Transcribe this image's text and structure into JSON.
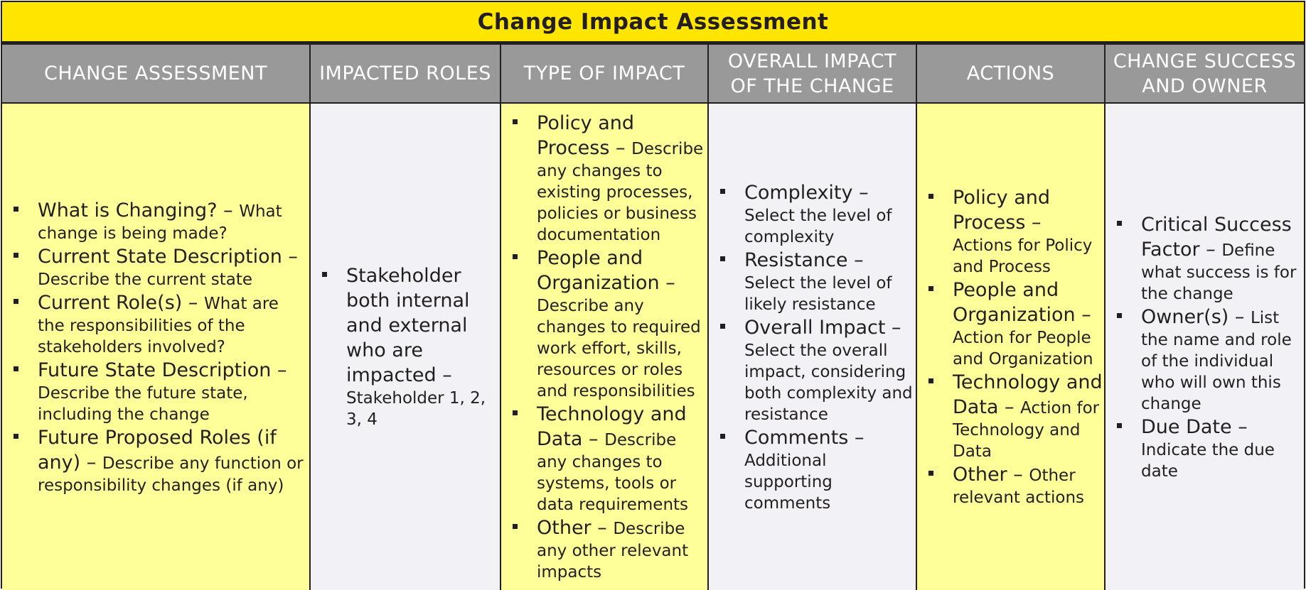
{
  "title": "Change Impact Assessment",
  "columns": [
    {
      "header": "CHANGE ASSESSMENT",
      "items": [
        {
          "term": "What is Changing?",
          "desc": "What change is being made?"
        },
        {
          "term": "Current State Description",
          "desc": "Describe the current state"
        },
        {
          "term": "Current Role(s)",
          "desc": "What are the responsibilities of the stakeholders involved?"
        },
        {
          "term": "Future State Description",
          "desc": "Describe the future state, including the change"
        },
        {
          "term": "Future Proposed Roles (if any)",
          "desc": "Describe any function or responsibility changes (if any)"
        }
      ]
    },
    {
      "header": "IMPACTED ROLES",
      "items": [
        {
          "term": "Stakeholder both internal and external who are impacted",
          "desc": "Stakeholder 1, 2, 3, 4"
        }
      ]
    },
    {
      "header": "TYPE OF IMPACT",
      "items": [
        {
          "term": "Policy and Process",
          "desc": "Describe any changes to existing processes, policies or business documentation"
        },
        {
          "term": "People and Organization",
          "desc": "Describe any changes to required work effort, skills, resources or roles and responsibilities"
        },
        {
          "term": "Technology and Data",
          "desc": "Describe any changes to systems, tools or data requirements"
        },
        {
          "term": "Other",
          "desc": "Describe any other relevant impacts"
        }
      ]
    },
    {
      "header": "OVERALL IMPACT OF THE CHANGE",
      "items": [
        {
          "term": "Complexity",
          "desc": "Select the level of complexity"
        },
        {
          "term": "Resistance",
          "desc": "Select the level of likely resistance"
        },
        {
          "term": "Overall Impact",
          "desc": "Select the overall impact, considering both complexity and resistance"
        },
        {
          "term": "Comments",
          "desc": "Additional supporting comments"
        }
      ]
    },
    {
      "header": "ACTIONS",
      "items": [
        {
          "term": "Policy and Process",
          "desc": "Actions for Policy and Process"
        },
        {
          "term": "People and Organization",
          "desc": "Action for People and Organization"
        },
        {
          "term": "Technology and Data",
          "desc": "Action for Technology and Data"
        },
        {
          "term": "Other",
          "desc": "Other relevant actions"
        }
      ]
    },
    {
      "header": "CHANGE SUCCESS AND OWNER",
      "items": [
        {
          "term": "Critical Success Factor",
          "desc": "Define what success is for the change"
        },
        {
          "term": "Owner(s)",
          "desc": "List the name and role of the individual who will own this change"
        },
        {
          "term": "Due Date",
          "desc": "Indicate the due date"
        }
      ]
    }
  ],
  "separator": " – ",
  "colors": {
    "title_bg": "#ffe600",
    "header_bg": "#999999",
    "yellow_cell": "#ffff99",
    "grey_cell": "#f2f2f6"
  }
}
